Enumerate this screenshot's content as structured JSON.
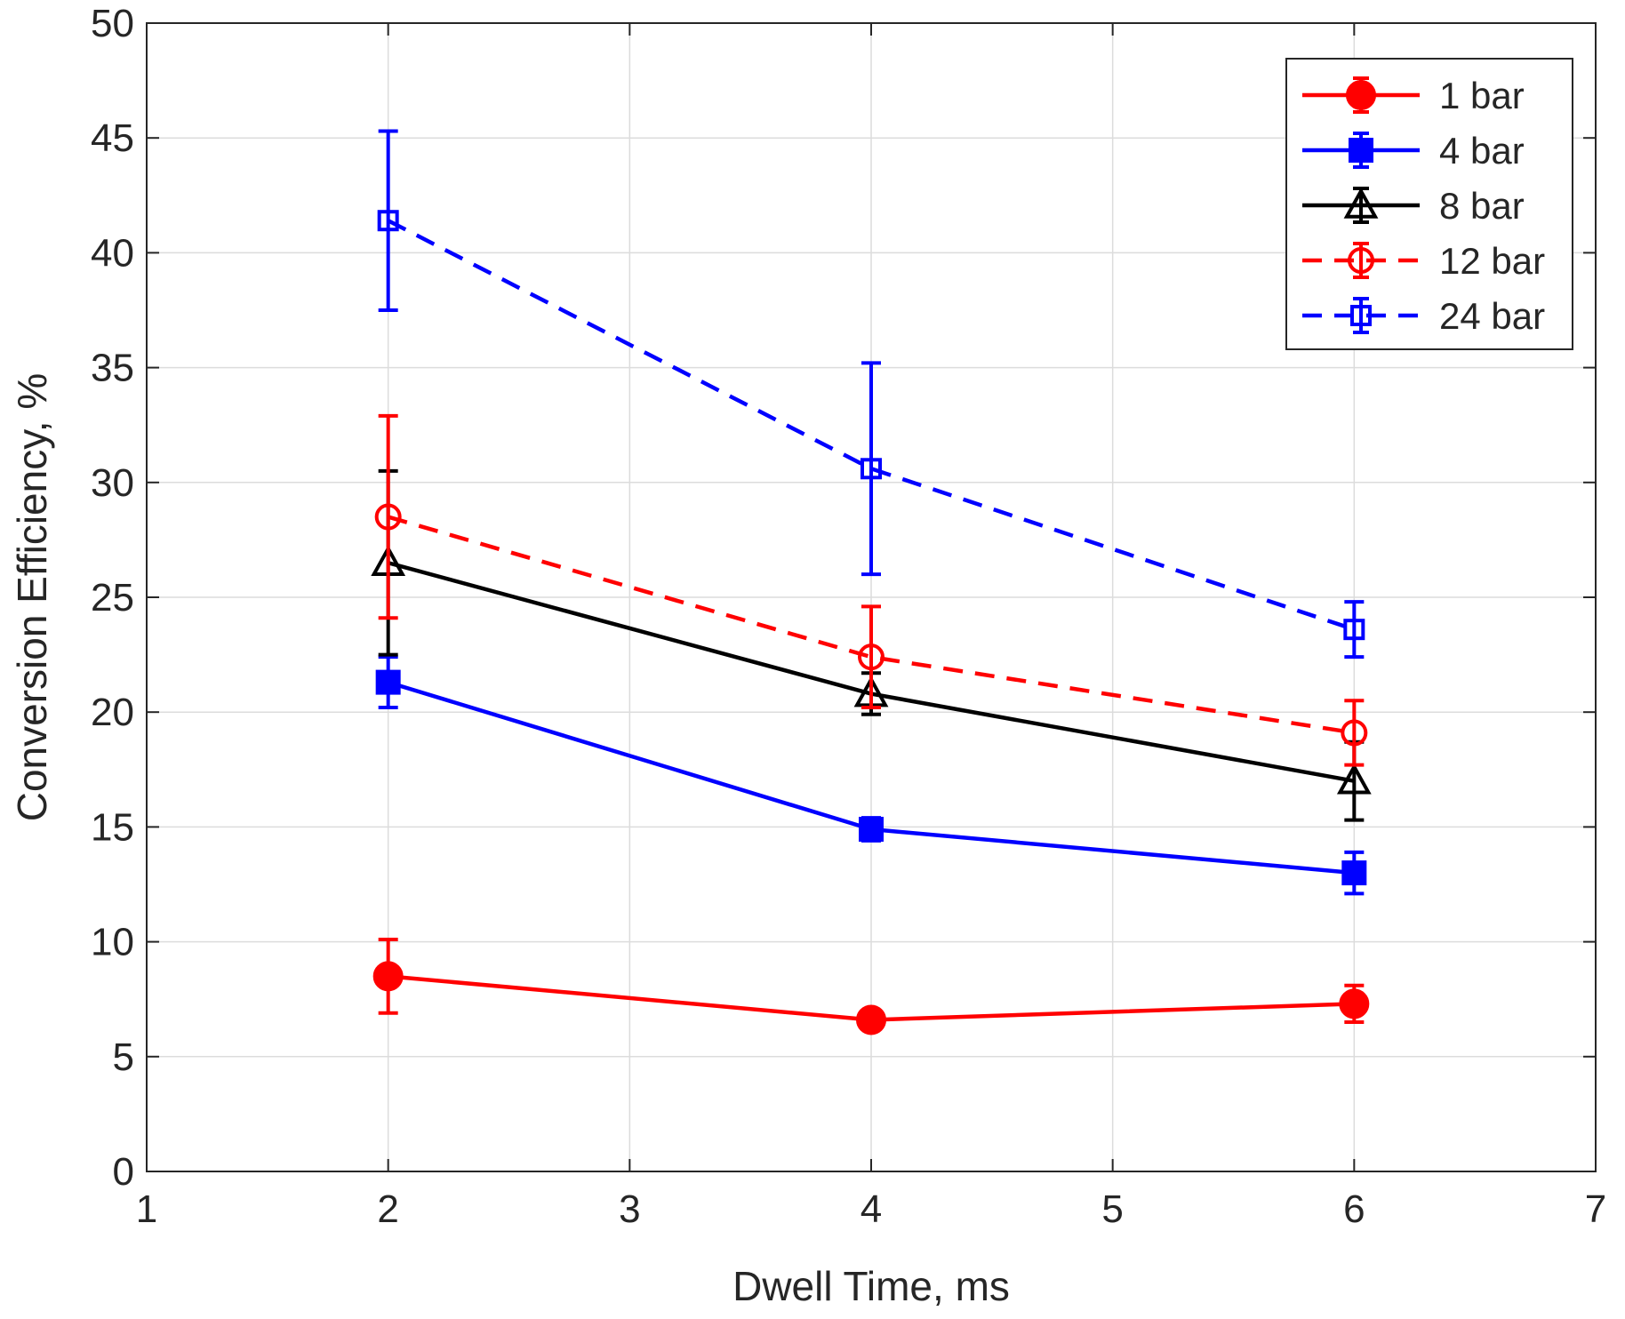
{
  "chart_data": {
    "type": "line",
    "title": "",
    "xlabel": "Dwell Time, ms",
    "ylabel": "Conversion Efficiency, %",
    "xlim": [
      1,
      7
    ],
    "ylim": [
      0,
      50
    ],
    "xticks": [
      1,
      2,
      3,
      4,
      5,
      6,
      7
    ],
    "yticks": [
      0,
      5,
      10,
      15,
      20,
      25,
      30,
      35,
      40,
      45,
      50
    ],
    "grid": true,
    "legend_position": "top-right",
    "x": [
      2,
      4,
      6
    ],
    "series": [
      {
        "name": "1 bar",
        "color": "#ff0000",
        "dash": "solid",
        "marker": "circle-filled",
        "values": [
          8.5,
          6.6,
          7.3
        ],
        "err": [
          1.6,
          0.4,
          0.8
        ]
      },
      {
        "name": "4 bar",
        "color": "#0000ff",
        "dash": "solid",
        "marker": "square-filled",
        "values": [
          21.3,
          14.9,
          13.0
        ],
        "err": [
          1.1,
          0.5,
          0.9
        ]
      },
      {
        "name": "8 bar",
        "color": "#000000",
        "dash": "solid",
        "marker": "triangle-open",
        "values": [
          26.5,
          20.8,
          17.0
        ],
        "err": [
          4.0,
          0.9,
          1.7
        ]
      },
      {
        "name": "12 bar",
        "color": "#ff0000",
        "dash": "dashed",
        "marker": "circle-open",
        "values": [
          28.5,
          22.4,
          19.1
        ],
        "err": [
          4.4,
          2.2,
          1.4
        ]
      },
      {
        "name": "24 bar",
        "color": "#0000ff",
        "dash": "dashed",
        "marker": "square-open",
        "values": [
          41.4,
          30.6,
          23.6
        ],
        "err": [
          3.9,
          4.6,
          1.2
        ]
      }
    ]
  }
}
